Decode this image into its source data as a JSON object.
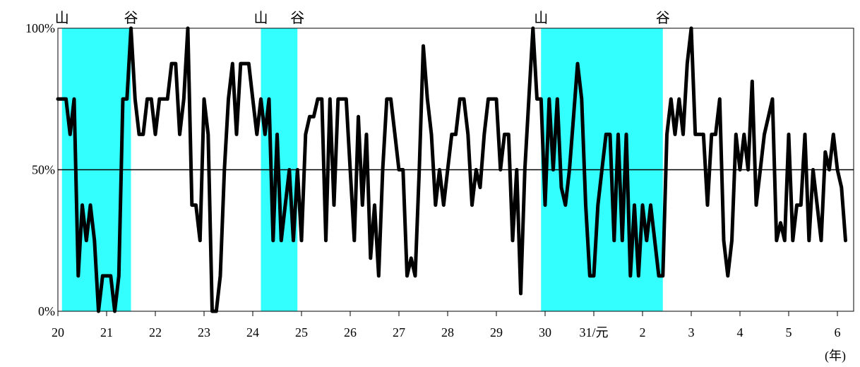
{
  "chart_data": {
    "type": "line",
    "title": "",
    "xlabel": "",
    "ylabel": "",
    "x_unit_label": "(年)",
    "ylim": [
      0,
      100
    ],
    "xlim": [
      0,
      196
    ],
    "grid": false,
    "reference_line": 50,
    "y_ticks": [
      {
        "v": 0,
        "label": "0%"
      },
      {
        "v": 50,
        "label": "50%"
      },
      {
        "v": 100,
        "label": "100%"
      }
    ],
    "x_ticks": [
      {
        "t": 0,
        "label": "20"
      },
      {
        "t": 12,
        "label": "21"
      },
      {
        "t": 24,
        "label": "22"
      },
      {
        "t": 36,
        "label": "23"
      },
      {
        "t": 48,
        "label": "24"
      },
      {
        "t": 60,
        "label": "25"
      },
      {
        "t": 72,
        "label": "26"
      },
      {
        "t": 84,
        "label": "27"
      },
      {
        "t": 96,
        "label": "28"
      },
      {
        "t": 108,
        "label": "29"
      },
      {
        "t": 120,
        "label": "30"
      },
      {
        "t": 132,
        "label": "31/元"
      },
      {
        "t": 144,
        "label": "2"
      },
      {
        "t": 156,
        "label": "3"
      },
      {
        "t": 168,
        "label": "4"
      },
      {
        "t": 180,
        "label": "5"
      },
      {
        "t": 192,
        "label": "6"
      }
    ],
    "markers": [
      {
        "t": 1,
        "label": "山"
      },
      {
        "t": 18,
        "label": "谷"
      },
      {
        "t": 50,
        "label": "山"
      },
      {
        "t": 59,
        "label": "谷"
      },
      {
        "t": 119,
        "label": "山"
      },
      {
        "t": 149,
        "label": "谷"
      }
    ],
    "shaded_periods": [
      [
        1,
        18
      ],
      [
        50,
        59
      ],
      [
        119,
        149
      ]
    ],
    "shade_color": "#33ffff",
    "line_color": "#000000",
    "series": [
      {
        "values": [
          75,
          75,
          75,
          62.5,
          75,
          12.5,
          37.5,
          25,
          37.5,
          25,
          0,
          12.5,
          12.5,
          12.5,
          0,
          12.5,
          75,
          75,
          100,
          75,
          62.5,
          62.5,
          75,
          75,
          62.5,
          75,
          75,
          75,
          87.5,
          87.5,
          62.5,
          75,
          100,
          37.5,
          37.5,
          25,
          75,
          62.5,
          0,
          0,
          12.5,
          50,
          75,
          87.5,
          62.5,
          87.5,
          87.5,
          87.5,
          75,
          62.5,
          75,
          62.5,
          75,
          25,
          62.5,
          25,
          37.5,
          50,
          25,
          50,
          25,
          62.5,
          68.75,
          68.75,
          75,
          75,
          25,
          75,
          37.5,
          75,
          75,
          75,
          50,
          25,
          68.75,
          37.5,
          62.5,
          18.75,
          37.5,
          12.5,
          50,
          75,
          75,
          62.5,
          50,
          50,
          12.5,
          18.75,
          12.5,
          50,
          93.75,
          75,
          62.5,
          37.5,
          50,
          37.5,
          50,
          62.5,
          62.5,
          75,
          75,
          62.5,
          37.5,
          50,
          43.75,
          62.5,
          75,
          75,
          75,
          50,
          62.5,
          62.5,
          25,
          50,
          6.25,
          50,
          75,
          100,
          75,
          75,
          37.5,
          75,
          50,
          75,
          43.75,
          37.5,
          50,
          68.75,
          87.5,
          75,
          37.5,
          12.5,
          12.5,
          37.5,
          50,
          62.5,
          62.5,
          25,
          62.5,
          25,
          62.5,
          12.5,
          37.5,
          12.5,
          37.5,
          25,
          37.5,
          25,
          12.5,
          12.5,
          62.5,
          75,
          62.5,
          75,
          62.5,
          87.5,
          100,
          62.5,
          62.5,
          62.5,
          37.5,
          62.5,
          62.5,
          75,
          25,
          12.5,
          25,
          62.5,
          50,
          62.5,
          50,
          81.25,
          37.5,
          50,
          62.5,
          68.75,
          75,
          25,
          31.25,
          25,
          62.5,
          25,
          37.5,
          37.5,
          62.5,
          25,
          50,
          37.5,
          25,
          56.25,
          50,
          62.5,
          50,
          43.75,
          25
        ]
      }
    ]
  }
}
